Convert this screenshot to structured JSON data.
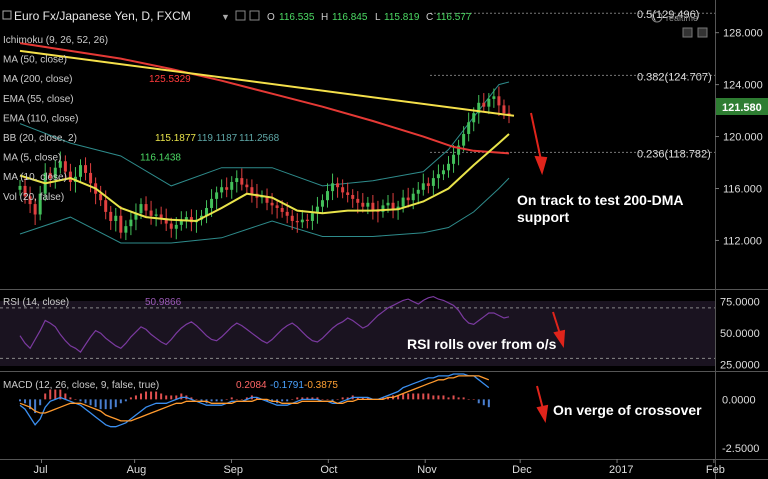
{
  "header": {
    "symbol": "Euro Fx/Japanese Yen, D, FXCM",
    "open_label": "O",
    "open": "116.535",
    "high_label": "H",
    "high": "116.845",
    "low_label": "L",
    "low": "115.819",
    "close_label": "C",
    "close": "116.577",
    "realtime": "realtime"
  },
  "indicators": [
    {
      "label": "Ichimoku (9, 26, 52, 26)",
      "values": []
    },
    {
      "label": "MA (50, close)",
      "values": []
    },
    {
      "label": "MA (200, close)",
      "values": [
        {
          "text": "125.5329",
          "color": "#ff3b3b"
        }
      ]
    },
    {
      "label": "EMA (55, close)",
      "values": []
    },
    {
      "label": "EMA (110, close)",
      "values": []
    },
    {
      "label": "BB (20, close, 2)",
      "values": [
        {
          "text": "115.1877",
          "color": "#e8e34a"
        },
        {
          "text": "119.1187",
          "color": "#5fa8a8"
        },
        {
          "text": "111.2568",
          "color": "#5fa8a8"
        }
      ]
    },
    {
      "label": "MA (5, close)",
      "values": [
        {
          "text": "116.1438",
          "color": "#4cd964"
        }
      ]
    },
    {
      "label": "MA (10, close)",
      "values": []
    },
    {
      "label": "Vol (20, false)",
      "values": []
    }
  ],
  "rsi_header": {
    "label": "RSI (14, close)",
    "value": "50.9866"
  },
  "macd_header": {
    "label": "MACD (12, 26, close, 9, false, true)",
    "values": [
      {
        "text": "0.2084",
        "color": "#ff6666"
      },
      {
        "text": "-0.1791",
        "color": "#4aa3ff"
      },
      {
        "text": "-0.3875",
        "color": "#ffa033"
      }
    ]
  },
  "annotations": {
    "main": [
      "On track to test 200-DMA",
      "support"
    ],
    "rsi": "RSI rolls over from o/s",
    "macd": "On verge of crossover"
  },
  "current_price": "121.580",
  "chart_data": {
    "type": "candlestick",
    "title": "Euro Fx/Japanese Yen, D, FXCM",
    "x_tick_labels": [
      "Jul",
      "Aug",
      "Sep",
      "Oct",
      "Nov",
      "Dec",
      "2017",
      "Feb"
    ],
    "price_axis": {
      "ticks": [
        "128.000",
        "124.000",
        "120.000",
        "116.000",
        "112.000"
      ],
      "tick_values": [
        128,
        124,
        120,
        116,
        112
      ],
      "ylim": [
        108.8,
        129.9
      ]
    },
    "fib_levels": [
      {
        "label": "0.5(129.496)",
        "value": 129.496
      },
      {
        "label": "0.382(124.707)",
        "value": 124.707
      },
      {
        "label": "0.236(118.782)",
        "value": 118.782
      }
    ],
    "close_series": [
      116.2,
      115.4,
      114.8,
      114.0,
      115.6,
      117.2,
      116.8,
      117.6,
      118.1,
      117.3,
      116.5,
      116.9,
      117.8,
      117.2,
      116.4,
      115.6,
      115.1,
      114.2,
      113.5,
      113.9,
      112.6,
      113.1,
      113.6,
      114.1,
      114.8,
      114.3,
      113.9,
      114.0,
      113.7,
      113.3,
      112.9,
      113.2,
      113.5,
      113.8,
      113.4,
      113.6,
      113.9,
      114.5,
      115.2,
      115.7,
      116.1,
      115.9,
      116.5,
      116.8,
      116.3,
      116.1,
      115.6,
      115.3,
      115.4,
      114.9,
      114.7,
      114.5,
      114.2,
      113.9,
      113.5,
      113.4,
      113.6,
      113.5,
      114.1,
      114.6,
      115.1,
      115.8,
      116.4,
      116.1,
      115.7,
      115.5,
      115.2,
      114.9,
      114.6,
      114.9,
      114.3,
      114.2,
      114.7,
      114.9,
      114.4,
      114.6,
      115.3,
      115.1,
      115.6,
      115.9,
      116.4,
      116.2,
      116.8,
      117.1,
      117.4,
      117.9,
      118.6,
      119.3,
      120.2,
      121.1,
      121.8,
      122.6,
      122.3,
      122.9,
      123.1,
      122.4,
      121.8,
      121.6
    ],
    "series": [
      {
        "name": "MA (200, close)",
        "color": "#e53935",
        "values": [
          [
            0,
            127.2
          ],
          [
            10,
            126.6
          ],
          [
            20,
            126.0
          ],
          [
            30,
            125.2
          ],
          [
            40,
            124.3
          ],
          [
            50,
            123.3
          ],
          [
            60,
            122.3
          ],
          [
            70,
            121.2
          ],
          [
            80,
            120.0
          ],
          [
            86,
            119.2
          ],
          [
            90,
            118.9
          ],
          [
            97,
            118.7
          ]
        ]
      },
      {
        "name": "Trendline",
        "color": "#f5e04a",
        "values": [
          [
            0,
            126.6
          ],
          [
            98,
            121.6
          ]
        ]
      },
      {
        "name": "BB mid (20)",
        "color": "#e8e34a",
        "values": [
          [
            0,
            117.0
          ],
          [
            5,
            116.4
          ],
          [
            10,
            116.8
          ],
          [
            15,
            116.0
          ],
          [
            20,
            114.5
          ],
          [
            25,
            113.8
          ],
          [
            30,
            113.6
          ],
          [
            35,
            113.5
          ],
          [
            40,
            114.5
          ],
          [
            45,
            115.6
          ],
          [
            50,
            115.3
          ],
          [
            55,
            114.3
          ],
          [
            60,
            114.1
          ],
          [
            65,
            114.3
          ],
          [
            70,
            114.3
          ],
          [
            75,
            114.4
          ],
          [
            80,
            115.0
          ],
          [
            85,
            116.0
          ],
          [
            90,
            117.8
          ],
          [
            95,
            119.5
          ],
          [
            97,
            120.2
          ]
        ]
      },
      {
        "name": "BB upper",
        "color": "#2e8b8b",
        "values": [
          [
            0,
            121.0
          ],
          [
            10,
            119.5
          ],
          [
            20,
            118.5
          ],
          [
            30,
            116.2
          ],
          [
            40,
            117.6
          ],
          [
            50,
            117.6
          ],
          [
            60,
            116.2
          ],
          [
            70,
            116.6
          ],
          [
            80,
            117.3
          ],
          [
            85,
            119.0
          ],
          [
            90,
            121.5
          ],
          [
            95,
            124.0
          ],
          [
            97,
            124.2
          ]
        ]
      },
      {
        "name": "BB lower",
        "color": "#2e8b8b",
        "values": [
          [
            0,
            112.5
          ],
          [
            10,
            113.8
          ],
          [
            20,
            111.8
          ],
          [
            30,
            111.8
          ],
          [
            40,
            112.2
          ],
          [
            50,
            113.5
          ],
          [
            60,
            112.3
          ],
          [
            70,
            112.3
          ],
          [
            80,
            112.6
          ],
          [
            85,
            113.0
          ],
          [
            90,
            114.2
          ],
          [
            95,
            116.0
          ],
          [
            97,
            116.8
          ]
        ]
      }
    ],
    "rsi": {
      "ylim": [
        20,
        85
      ],
      "ticks": [
        "75.0000",
        "50.0000",
        "25.0000"
      ],
      "tick_values": [
        75,
        50,
        25
      ],
      "levels": [
        70,
        30
      ],
      "values": [
        48,
        42,
        38,
        45,
        52,
        60,
        58,
        55,
        49,
        44,
        40,
        38,
        35,
        41,
        47,
        52,
        50,
        46,
        43,
        40,
        38,
        42,
        47,
        51,
        55,
        53,
        49,
        46,
        43,
        41,
        45,
        50,
        54,
        57,
        59,
        56,
        52,
        48,
        45,
        44,
        47,
        51,
        55,
        58,
        56,
        53,
        50,
        47,
        44,
        42,
        45,
        49,
        53,
        56,
        58,
        55,
        51,
        47,
        44,
        43,
        46,
        50,
        54,
        57,
        59,
        62,
        60,
        57,
        54,
        56,
        60,
        64,
        67,
        70,
        72,
        74,
        76,
        77,
        75,
        73,
        76,
        78,
        79,
        77,
        76,
        74,
        72,
        68,
        62,
        58,
        57,
        60,
        63,
        66,
        66,
        64,
        62,
        63
      ]
    },
    "macd": {
      "ylim": [
        -3.0,
        1.4
      ],
      "ticks": [
        "0.0000",
        "-2.5000"
      ],
      "tick_values": [
        0,
        -2.5
      ],
      "macd_line": [
        -0.3,
        -0.5,
        -0.9,
        -1.3,
        -1.0,
        -0.4,
        -0.1,
        0.0,
        0.1,
        0.0,
        -0.1,
        -0.2,
        -0.3,
        -0.5,
        -0.7,
        -0.9,
        -1.1,
        -1.3,
        -1.4,
        -1.4,
        -1.3,
        -1.2,
        -1.0,
        -0.8,
        -0.6,
        -0.4,
        -0.3,
        -0.2,
        -0.2,
        -0.2,
        -0.1,
        0.0,
        0.1,
        0.1,
        0.0,
        -0.1,
        -0.2,
        -0.3,
        -0.3,
        -0.3,
        -0.3,
        -0.2,
        -0.1,
        -0.1,
        -0.1,
        0.0,
        0.1,
        0.1,
        0.0,
        -0.1,
        -0.2,
        -0.3,
        -0.3,
        -0.3,
        -0.2,
        -0.1,
        0.0,
        0.0,
        0.0,
        0.0,
        -0.1,
        -0.1,
        -0.2,
        -0.2,
        -0.1,
        0.0,
        0.1,
        0.1,
        0.1,
        0.1,
        0.0,
        0.0,
        0.1,
        0.2,
        0.3,
        0.4,
        0.6,
        0.7,
        0.8,
        0.9,
        1.0,
        1.1,
        1.1,
        1.2,
        1.2,
        1.2,
        1.3,
        1.3,
        1.3,
        1.2,
        1.2,
        1.0,
        0.8,
        0.6
      ],
      "signal_line": [
        -0.2,
        -0.3,
        -0.4,
        -0.6,
        -0.7,
        -0.7,
        -0.6,
        -0.5,
        -0.4,
        -0.3,
        -0.2,
        -0.2,
        -0.2,
        -0.3,
        -0.4,
        -0.5,
        -0.6,
        -0.8,
        -0.9,
        -1.0,
        -1.1,
        -1.1,
        -1.1,
        -1.0,
        -0.9,
        -0.8,
        -0.7,
        -0.6,
        -0.5,
        -0.4,
        -0.3,
        -0.2,
        -0.2,
        -0.1,
        -0.1,
        -0.1,
        -0.1,
        -0.1,
        -0.2,
        -0.2,
        -0.2,
        -0.2,
        -0.2,
        -0.1,
        -0.1,
        -0.1,
        -0.1,
        0.0,
        0.0,
        0.0,
        -0.1,
        -0.1,
        -0.2,
        -0.2,
        -0.2,
        -0.2,
        -0.1,
        -0.1,
        -0.1,
        -0.1,
        -0.1,
        -0.1,
        -0.1,
        -0.2,
        -0.2,
        -0.1,
        -0.1,
        0.0,
        0.0,
        0.0,
        0.0,
        0.0,
        0.0,
        0.1,
        0.1,
        0.2,
        0.3,
        0.4,
        0.5,
        0.6,
        0.7,
        0.8,
        0.9,
        1.0,
        1.0,
        1.1,
        1.1,
        1.2,
        1.2,
        1.2,
        1.2,
        1.2,
        1.1,
        1.0
      ]
    }
  }
}
